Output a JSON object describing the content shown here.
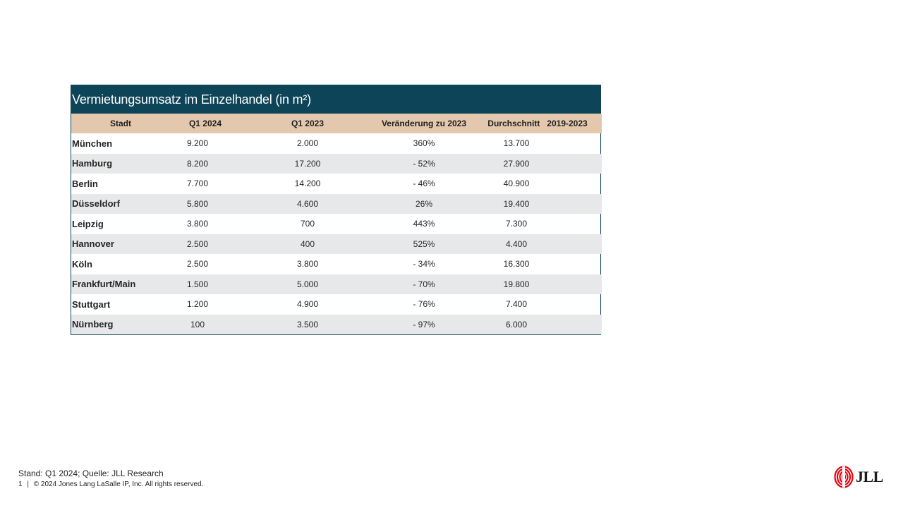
{
  "table": {
    "title": "Vermietungsumsatz im Einzelhandel (in m²)",
    "headers": [
      "Stadt",
      "Q1 2024",
      "Q1 2023",
      "Veränderung zu 2023",
      "Durchschnitt   2019-2023"
    ],
    "rows": [
      [
        "München",
        "9.200",
        "2.000",
        "360%",
        "13.700"
      ],
      [
        "Hamburg",
        "8.200",
        "17.200",
        "- 52%",
        "27.900"
      ],
      [
        "Berlin",
        "7.700",
        "14.200",
        "- 46%",
        "40.900"
      ],
      [
        "Düsseldorf",
        "5.800",
        "4.600",
        "26%",
        "19.400"
      ],
      [
        "Leipzig",
        "3.800",
        "700",
        "443%",
        "7.300"
      ],
      [
        "Hannover",
        "2.500",
        "400",
        "525%",
        "4.400"
      ],
      [
        "Köln",
        "2.500",
        "3.800",
        "- 34%",
        "16.300"
      ],
      [
        "Frankfurt/Main",
        "1.500",
        "5.000",
        "- 70%",
        "19.800"
      ],
      [
        "Stuttgart",
        "1.200",
        "4.900",
        "- 76%",
        "7.400"
      ],
      [
        "Nürnberg",
        "100",
        "3.500",
        "- 97%",
        "6.000"
      ]
    ]
  },
  "footer": {
    "source": "Stand: Q1 2024; Quelle: JLL Research",
    "page_number": "1",
    "separator": "|",
    "copyright": "© 2024 Jones Lang LaSalle IP, Inc. All rights reserved."
  },
  "logo": {
    "text": "JLL",
    "icon": "jll-logo-icon",
    "color": "#e30613"
  },
  "colors": {
    "title_bg": "#0e4458",
    "header_bg": "#e3c8ad",
    "stripe_bg": "#e7e8e9"
  }
}
